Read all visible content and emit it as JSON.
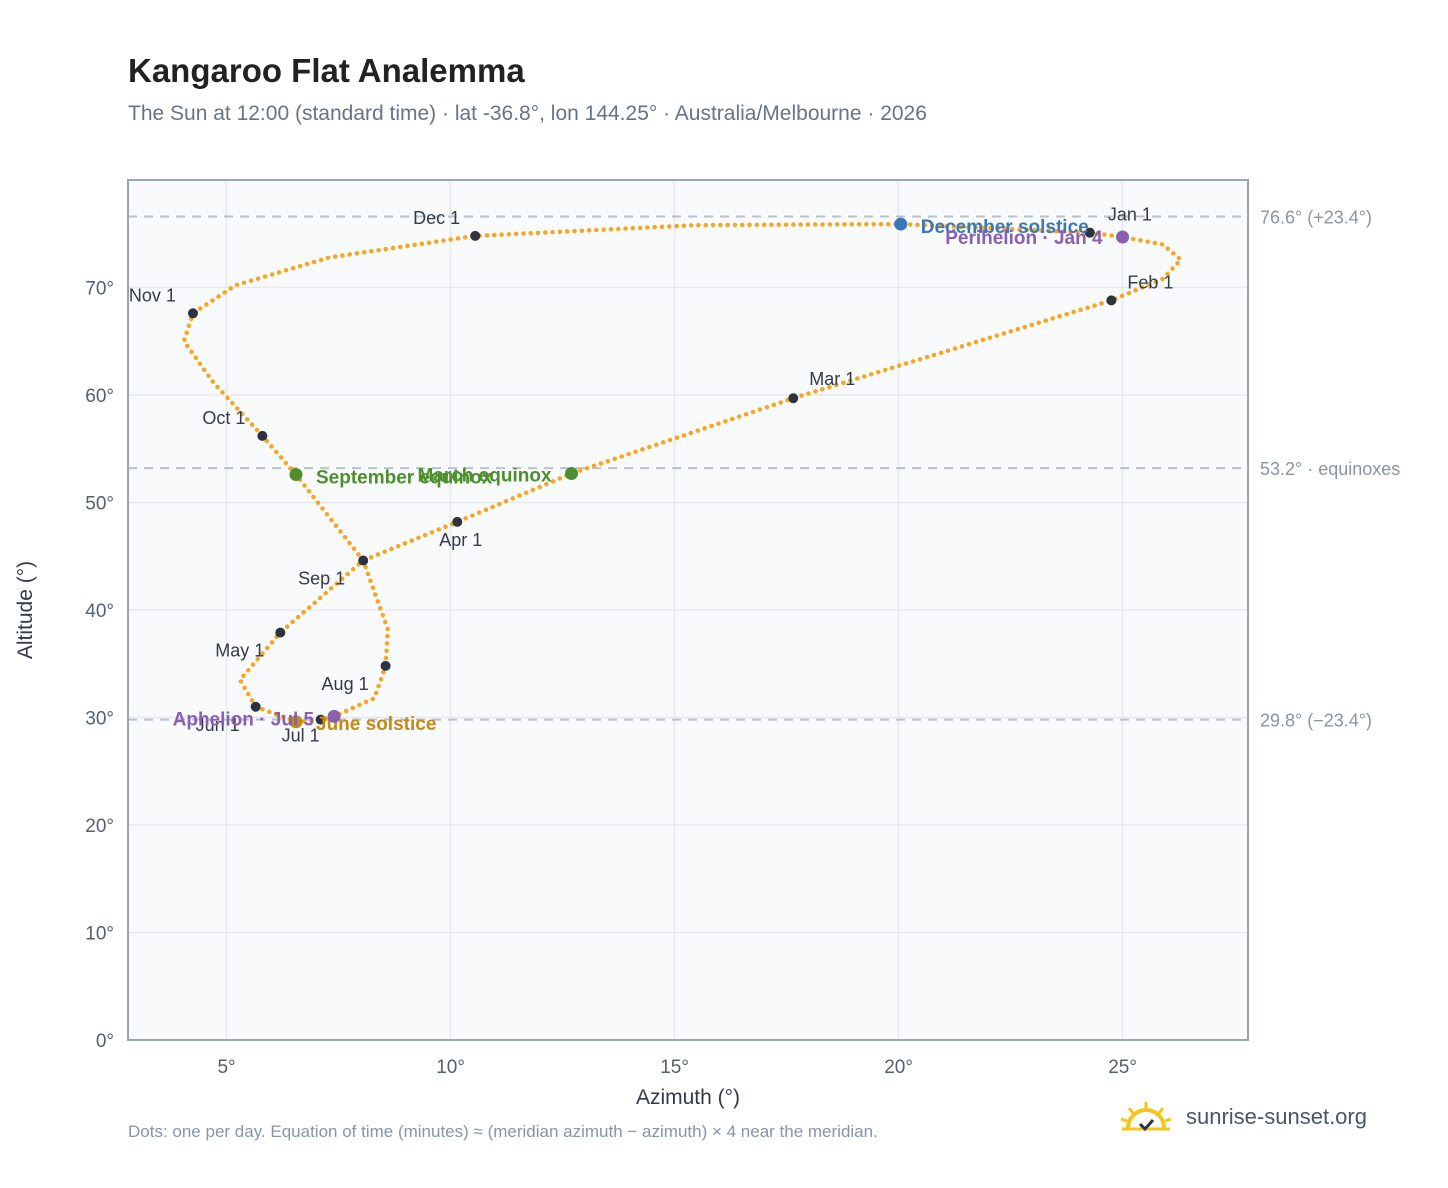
{
  "header": {
    "title": "Kangaroo Flat Analemma",
    "subtitle": "The Sun at 12:00 (standard time) · lat -36.8°, lon 144.25° · Australia/Melbourne · 2026"
  },
  "footer": {
    "note": "Dots: one per day. Equation of time (minutes) ≈ (meridian azimuth − azimuth) × 4 near the meridian.",
    "brand": "sunrise-sunset.org"
  },
  "colors": {
    "curve": "#f5a623",
    "month_marker": "#2d3440",
    "equinox": "#4e8f2d",
    "december_solstice": "#3a78b8",
    "june_solstice": "#c48a12",
    "apsis": "#8a5fb0",
    "grid": "#e5e9ef",
    "plot_bg": "#f8fafc",
    "reference_line": "#b8c2ce",
    "frame": "#98a4b4"
  },
  "chart_data": {
    "type": "scatter",
    "title": "Kangaroo Flat Analemma",
    "xlabel": "Azimuth (°)",
    "ylabel": "Altitude (°)",
    "xlim": [
      2.8,
      27.8
    ],
    "ylim": [
      0,
      80
    ],
    "xticks": [
      5,
      10,
      15,
      20,
      25
    ],
    "yticks": [
      0,
      10,
      20,
      30,
      40,
      50,
      60,
      70
    ],
    "xtick_labels": [
      "5°",
      "10°",
      "15°",
      "20°",
      "25°"
    ],
    "ytick_labels": [
      "0°",
      "10°",
      "20°",
      "30°",
      "40°",
      "50°",
      "60°",
      "70°"
    ],
    "grid": true,
    "reference_lines": [
      {
        "y": 76.6,
        "label": "76.6° (+23.4°)"
      },
      {
        "y": 53.2,
        "label": "53.2° · equinoxes"
      },
      {
        "y": 29.8,
        "label": "29.8° (−23.4°)"
      }
    ],
    "months": [
      {
        "label": "Jan 1",
        "x": 24.27,
        "y": 75.1
      },
      {
        "label": "Feb 1",
        "x": 24.75,
        "y": 68.8
      },
      {
        "label": "Mar 1",
        "x": 17.65,
        "y": 59.7
      },
      {
        "label": "Apr 1",
        "x": 10.15,
        "y": 48.2
      },
      {
        "label": "May 1",
        "x": 6.2,
        "y": 37.9
      },
      {
        "label": "Jun 1",
        "x": 5.65,
        "y": 31.0
      },
      {
        "label": "Jul 1",
        "x": 7.1,
        "y": 29.8
      },
      {
        "label": "Aug 1",
        "x": 8.55,
        "y": 34.8
      },
      {
        "label": "Sep 1",
        "x": 8.05,
        "y": 44.6
      },
      {
        "label": "Oct 1",
        "x": 5.8,
        "y": 56.2
      },
      {
        "label": "Nov 1",
        "x": 4.25,
        "y": 67.6
      },
      {
        "label": "Dec 1",
        "x": 10.55,
        "y": 74.8
      }
    ],
    "events": [
      {
        "label": "December solstice",
        "x": 20.05,
        "y": 75.9,
        "kind": "december_solstice"
      },
      {
        "label": "Perihelion · Jan 4",
        "x": 25.0,
        "y": 74.7,
        "kind": "apsis"
      },
      {
        "label": "March equinox",
        "x": 12.7,
        "y": 52.7,
        "kind": "equinox"
      },
      {
        "label": "September equinox",
        "x": 6.55,
        "y": 52.6,
        "kind": "equinox"
      },
      {
        "label": "June solstice",
        "x": 6.55,
        "y": 29.6,
        "kind": "june_solstice"
      },
      {
        "label": "Aphelion · Jul 5",
        "x": 7.4,
        "y": 30.1,
        "kind": "apsis"
      }
    ],
    "curve_path": [
      {
        "x": 24.27,
        "y": 75.1
      },
      {
        "x": 25.0,
        "y": 74.7
      },
      {
        "x": 25.9,
        "y": 74.0
      },
      {
        "x": 26.3,
        "y": 72.6
      },
      {
        "x": 25.9,
        "y": 70.8
      },
      {
        "x": 24.75,
        "y": 68.8
      },
      {
        "x": 17.65,
        "y": 59.7
      },
      {
        "x": 12.7,
        "y": 52.7
      },
      {
        "x": 10.15,
        "y": 48.2
      },
      {
        "x": 8.05,
        "y": 44.6
      },
      {
        "x": 6.2,
        "y": 37.9
      },
      {
        "x": 5.3,
        "y": 33.5
      },
      {
        "x": 5.65,
        "y": 31.0
      },
      {
        "x": 6.55,
        "y": 29.6
      },
      {
        "x": 7.1,
        "y": 29.8
      },
      {
        "x": 7.4,
        "y": 30.1
      },
      {
        "x": 8.3,
        "y": 31.8
      },
      {
        "x": 8.55,
        "y": 34.8
      },
      {
        "x": 8.6,
        "y": 38.2
      },
      {
        "x": 8.05,
        "y": 44.6
      },
      {
        "x": 6.55,
        "y": 52.6
      },
      {
        "x": 5.8,
        "y": 56.2
      },
      {
        "x": 4.7,
        "y": 61.2
      },
      {
        "x": 4.05,
        "y": 65.0
      },
      {
        "x": 4.25,
        "y": 67.6
      },
      {
        "x": 5.2,
        "y": 70.2
      },
      {
        "x": 7.3,
        "y": 72.8
      },
      {
        "x": 10.55,
        "y": 74.8
      },
      {
        "x": 15.5,
        "y": 75.8
      },
      {
        "x": 20.05,
        "y": 75.9
      },
      {
        "x": 24.27,
        "y": 75.1
      }
    ]
  }
}
